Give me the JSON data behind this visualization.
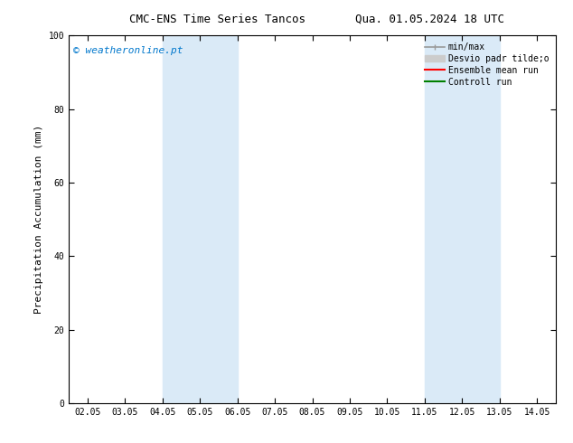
{
  "title_left": "CMC-ENS Time Series Tancos",
  "title_right": "Qua. 01.05.2024 18 UTC",
  "ylabel": "Precipitation Accumulation (mm)",
  "ylim": [
    0,
    100
  ],
  "yticks": [
    0,
    20,
    40,
    60,
    80,
    100
  ],
  "x_tick_labels": [
    "02.05",
    "03.05",
    "04.05",
    "05.05",
    "06.05",
    "07.05",
    "08.05",
    "09.05",
    "10.05",
    "11.05",
    "12.05",
    "13.05",
    "14.05"
  ],
  "x_tick_positions": [
    0,
    1,
    2,
    3,
    4,
    5,
    6,
    7,
    8,
    9,
    10,
    11,
    12
  ],
  "xlim": [
    -0.5,
    12.5
  ],
  "shaded_regions": [
    {
      "x_start": 2,
      "x_end": 4,
      "color": "#daeaf7"
    },
    {
      "x_start": 9,
      "x_end": 11,
      "color": "#daeaf7"
    }
  ],
  "watermark_text": "© weatheronline.pt",
  "watermark_color": "#0077cc",
  "bg_color": "#ffffff",
  "spine_color": "#000000",
  "figsize": [
    6.34,
    4.9
  ],
  "dpi": 100,
  "legend_minmax_color": "#999999",
  "legend_desvio_color": "#cccccc",
  "legend_ensemble_color": "#ff0000",
  "legend_control_color": "#008000"
}
